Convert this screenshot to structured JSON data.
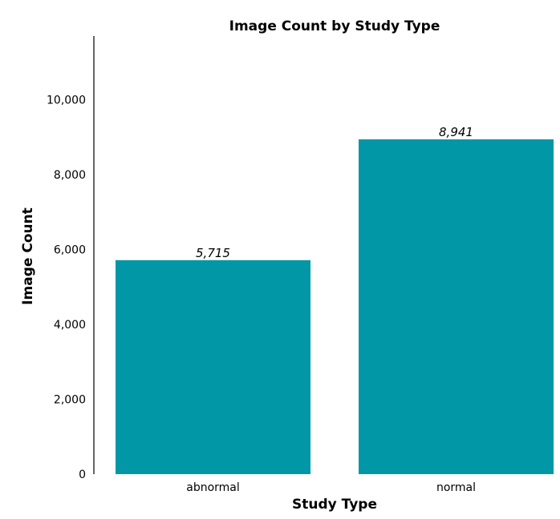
{
  "chart_data": {
    "type": "bar",
    "title": "Image Count by Study Type",
    "xlabel": "Study Type",
    "ylabel": "Image Count",
    "categories": [
      "abnormal",
      "normal"
    ],
    "values": [
      5715,
      8941
    ],
    "data_labels": [
      "5,715",
      "8,941"
    ],
    "ylim": [
      0,
      11700
    ],
    "yticks": [
      0,
      2000,
      4000,
      6000,
      8000,
      10000
    ],
    "ytick_labels": [
      "0",
      "2,000",
      "4,000",
      "6,000",
      "8,000",
      "10,000"
    ],
    "grid": false,
    "legend": "none",
    "bar_color": "#0297a6",
    "axis_color": "#000000"
  }
}
